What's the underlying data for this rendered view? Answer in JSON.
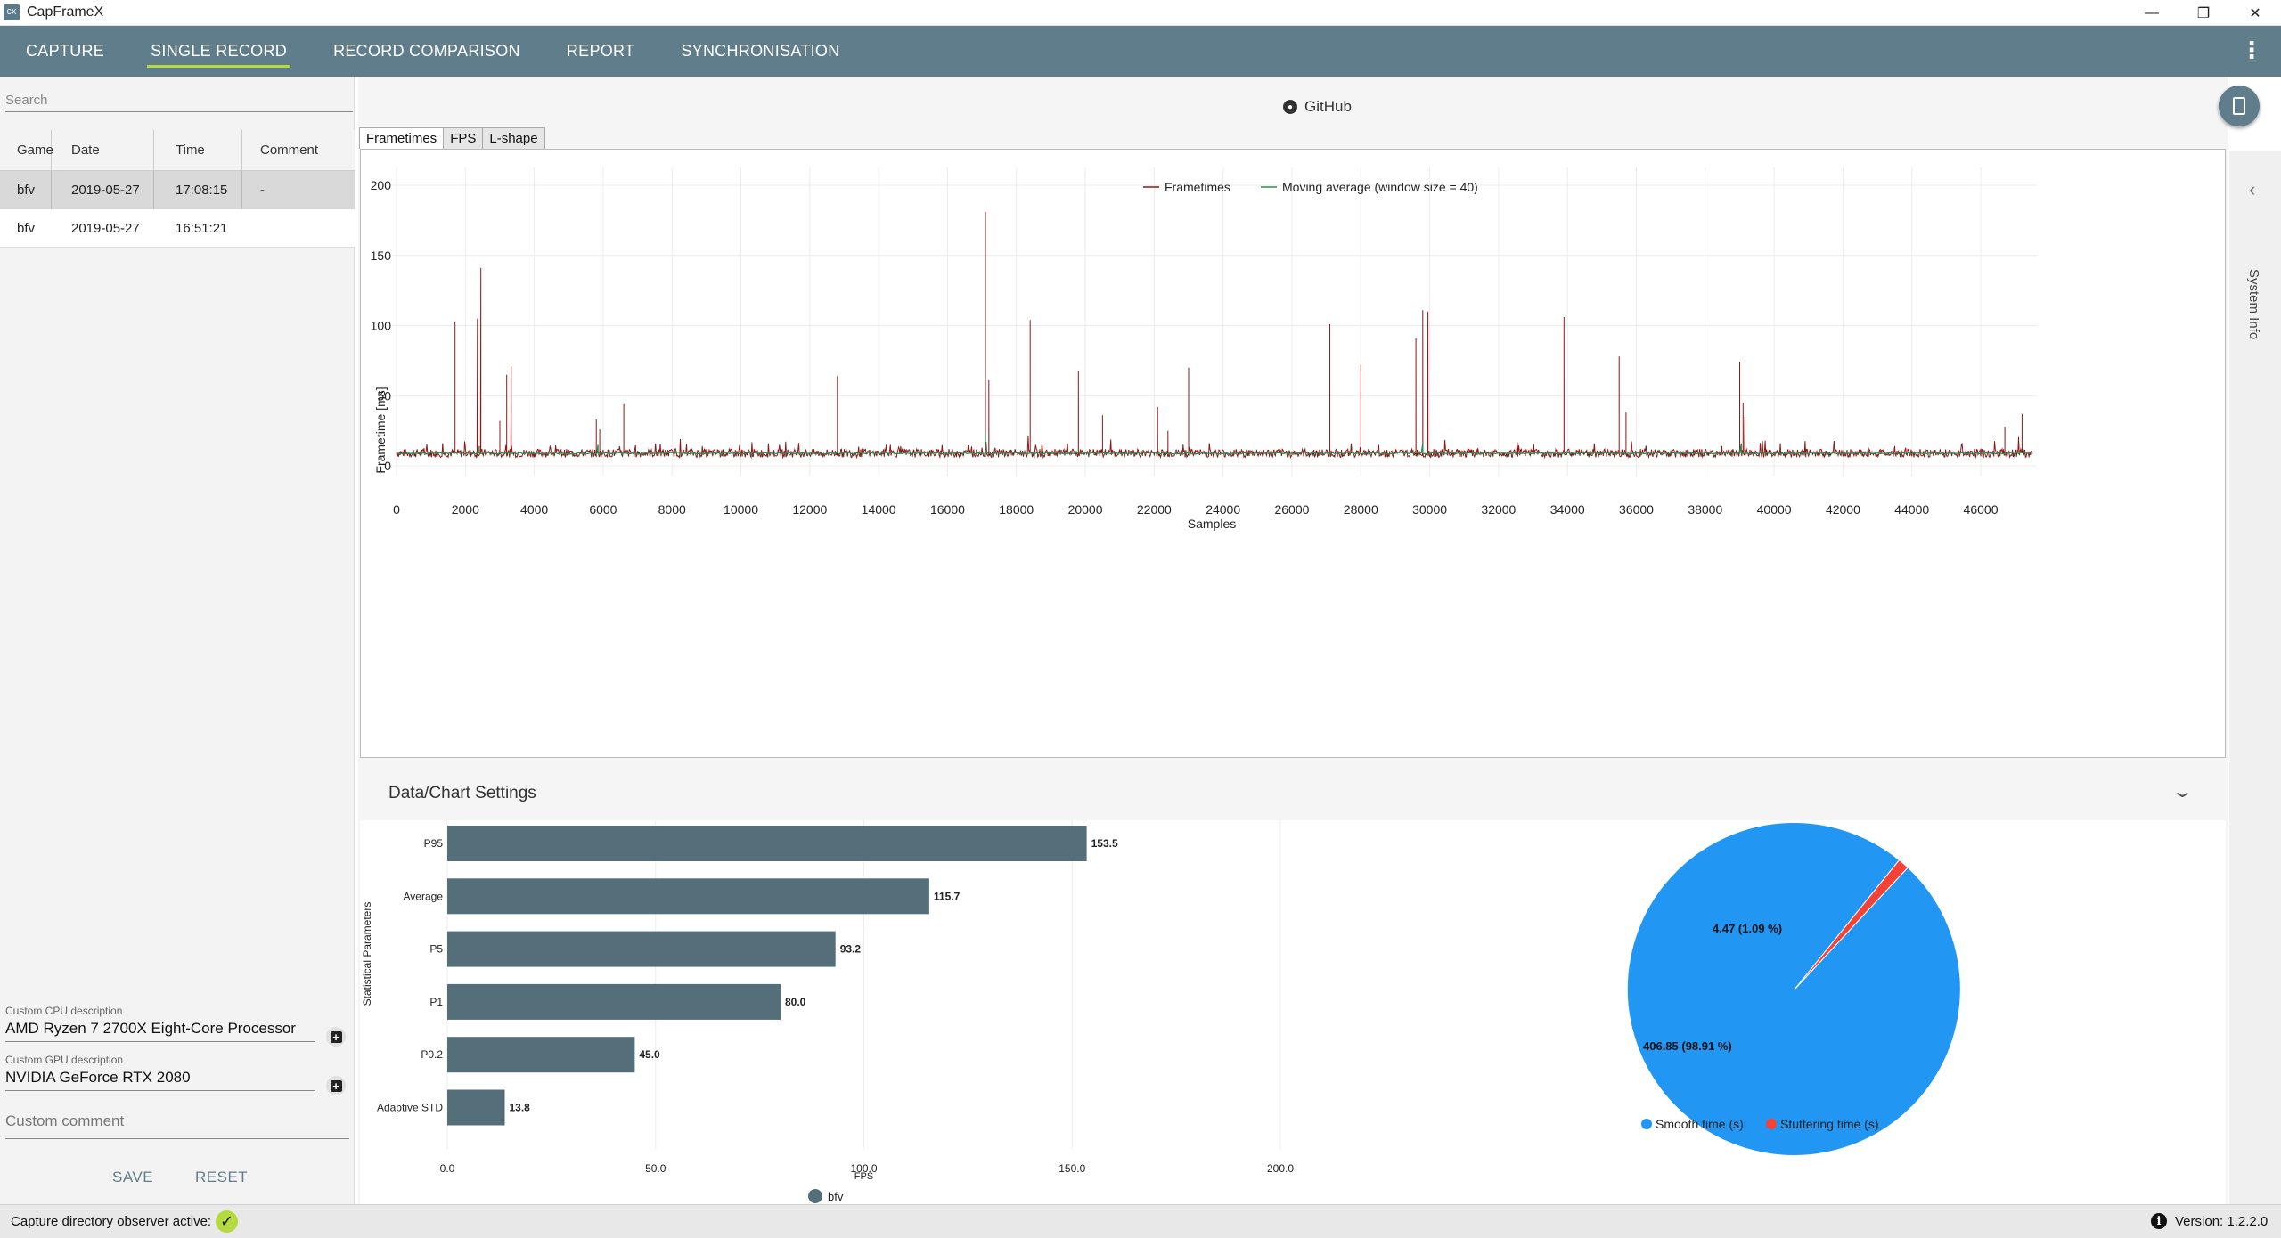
{
  "app": {
    "icon_text": "CX",
    "title": "CapFrameX",
    "win_controls": {
      "minimize": "—",
      "maximize": "❐",
      "close": "✕"
    }
  },
  "nav": {
    "tabs": [
      {
        "label": "CAPTURE",
        "active": false
      },
      {
        "label": "SINGLE RECORD",
        "active": true
      },
      {
        "label": "RECORD COMPARISON",
        "active": false
      },
      {
        "label": "REPORT",
        "active": false
      },
      {
        "label": "SYNCHRONISATION",
        "active": false
      }
    ],
    "more_icon": "⋮",
    "accent_color": "#b5d940",
    "bar_color": "#607d8b"
  },
  "sidebar": {
    "search_placeholder": "Search",
    "table": {
      "headers": [
        "Game",
        "Date",
        "Time",
        "Comment"
      ],
      "rows": [
        {
          "game": "bfv",
          "date": "2019-05-27",
          "time": "17:08:15",
          "comment": "-",
          "selected": true
        },
        {
          "game": "bfv",
          "date": "2019-05-27",
          "time": "16:51:21",
          "comment": "",
          "selected": false
        }
      ]
    },
    "cpu_label": "Custom CPU description",
    "cpu_value": "AMD Ryzen 7 2700X Eight-Core Processor",
    "gpu_label": "Custom GPU description",
    "gpu_value": "NVIDIA GeForce RTX 2080",
    "comment_placeholder": "Custom comment",
    "save_label": "SAVE",
    "reset_label": "RESET",
    "plus_icon": "+"
  },
  "main": {
    "github_label": "GitHub",
    "github_icon": "github-icon",
    "subtabs": [
      {
        "label": "Frametimes",
        "active": true
      },
      {
        "label": "FPS",
        "active": false
      },
      {
        "label": "L-shape",
        "active": false
      }
    ],
    "settings_title": "Data/Chart Settings",
    "settings_chevron": "⌄",
    "side_panel_label": "System Info",
    "side_panel_arrow": "‹"
  },
  "chart_data": [
    {
      "type": "line",
      "title": "",
      "xlabel": "Samples",
      "ylabel": "Frametime [ms]",
      "xlim": [
        0,
        47500
      ],
      "ylim": [
        0,
        200
      ],
      "x_ticks": [
        0,
        2000,
        4000,
        6000,
        8000,
        10000,
        12000,
        14000,
        16000,
        18000,
        20000,
        22000,
        24000,
        26000,
        28000,
        30000,
        32000,
        34000,
        36000,
        38000,
        40000,
        42000,
        44000,
        46000
      ],
      "y_ticks": [
        0,
        50,
        100,
        150,
        200
      ],
      "grid": true,
      "legend_position": "top-center",
      "series": [
        {
          "name": "Frametimes",
          "color": "#8b1a1a",
          "baseline": 9,
          "spikes": [
            [
              1700,
              103
            ],
            [
              2350,
              105
            ],
            [
              2450,
              141
            ],
            [
              3200,
              65
            ],
            [
              3330,
              71
            ],
            [
              3000,
              32
            ],
            [
              5800,
              33
            ],
            [
              5900,
              26
            ],
            [
              6600,
              44
            ],
            [
              12800,
              64
            ],
            [
              13000,
              12
            ],
            [
              17100,
              181
            ],
            [
              17200,
              61
            ],
            [
              18400,
              104
            ],
            [
              19800,
              68
            ],
            [
              20500,
              36
            ],
            [
              22100,
              42
            ],
            [
              22400,
              25
            ],
            [
              23000,
              70
            ],
            [
              27100,
              101
            ],
            [
              28000,
              72
            ],
            [
              29600,
              91
            ],
            [
              29800,
              111
            ],
            [
              29950,
              110
            ],
            [
              33900,
              106
            ],
            [
              35500,
              78
            ],
            [
              35700,
              38
            ],
            [
              39000,
              74
            ],
            [
              39100,
              45
            ],
            [
              39150,
              35
            ],
            [
              46700,
              28
            ],
            [
              47200,
              37
            ]
          ]
        },
        {
          "name": "Moving average (window size = 40)",
          "color": "#2e8b57",
          "baseline": 9,
          "spikes": [
            [
              2400,
              14
            ],
            [
              5850,
              15
            ],
            [
              17100,
              24
            ],
            [
              29800,
              16
            ],
            [
              39050,
              16
            ]
          ]
        }
      ]
    },
    {
      "type": "bar",
      "orientation": "horizontal",
      "categories": [
        "P95",
        "Average",
        "P5",
        "P1",
        "P0.2",
        "Adaptive STD"
      ],
      "series": [
        {
          "name": "bfv",
          "values": [
            153.5,
            115.7,
            93.2,
            80.0,
            45.0,
            13.8
          ]
        }
      ],
      "value_labels": [
        "153.5",
        "115.7",
        "93.2",
        "80.0",
        "45.0",
        "13.8"
      ],
      "xlabel": "FPS",
      "ylabel": "Statistical Parameters",
      "xlim": [
        0,
        200
      ],
      "x_ticks": [
        "0.0",
        "50.0",
        "100.0",
        "150.0",
        "200.0"
      ],
      "bar_color": "#546e7a",
      "legend_position": "bottom-center"
    },
    {
      "type": "pie",
      "slices": [
        {
          "name": "Smooth time (s)",
          "value": 406.85,
          "label": "406.85 (98.91 %)",
          "color": "#2196f3"
        },
        {
          "name": "Stuttering time (s)",
          "value": 4.47,
          "label": "4.47 (1.09 %)",
          "color": "#f44336"
        }
      ],
      "legend_position": "bottom-center"
    }
  ],
  "status": {
    "observer_text": "Capture directory observer active:",
    "check_icon": "✓",
    "info_icon": "i",
    "version_text": "Version:  1.2.2.0"
  }
}
